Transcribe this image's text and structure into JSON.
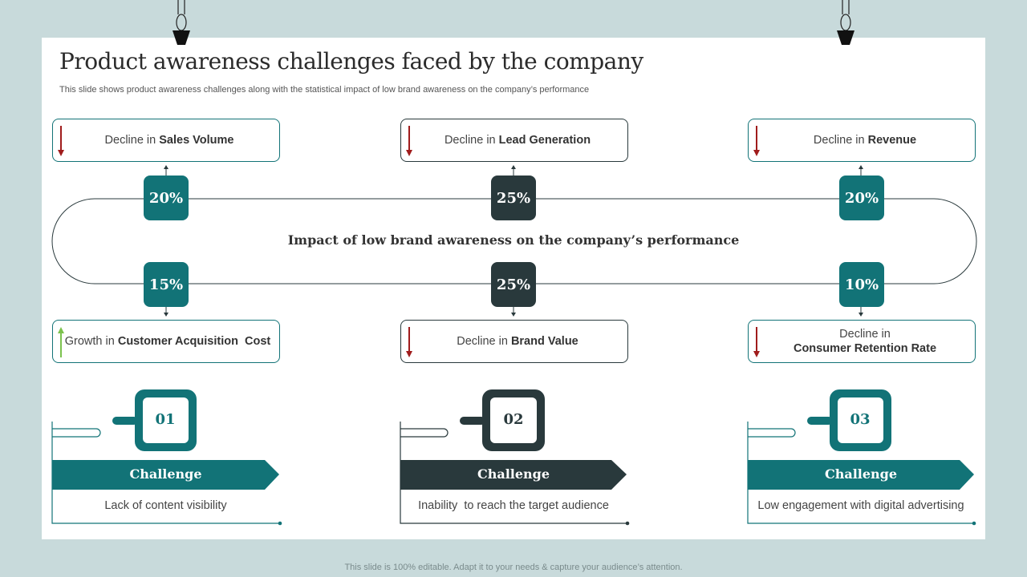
{
  "title": "Product awareness challenges faced by the company",
  "subtitle": "This slide shows product awareness challenges along with the statistical impact of low brand awareness on the company’s performance",
  "center_text": "Impact of low brand awareness on the company’s performance",
  "metrics": {
    "top": [
      {
        "percent": "20%",
        "prefix": "Decline in",
        "label": "Sales Volume",
        "direction": "decline"
      },
      {
        "percent": "25%",
        "prefix": "Decline in",
        "label": "Lead Generation",
        "direction": "decline"
      },
      {
        "percent": "20%",
        "prefix": "Decline in",
        "label": "Revenue",
        "direction": "decline"
      }
    ],
    "bottom": [
      {
        "percent": "15%",
        "prefix": "Growth in",
        "label": "Customer Acquisition  Cost",
        "direction": "growth"
      },
      {
        "percent": "25%",
        "prefix": "Decline in",
        "label": "Brand Value",
        "direction": "decline"
      },
      {
        "percent": "10%",
        "prefix": "Decline in",
        "label": "Consumer Retention Rate",
        "direction": "decline"
      }
    ]
  },
  "challenges": [
    {
      "number": "01",
      "label": "Challenge",
      "description": "Lack of content visibility"
    },
    {
      "number": "02",
      "label": "Challenge",
      "description": "Inability  to reach the target audience"
    },
    {
      "number": "03",
      "label": "Challenge",
      "description": "Low engagement with digital advertising"
    }
  ],
  "footer": "This slide is 100% editable. Adapt it to your needs & capture your audience’s attention.",
  "colors": {
    "teal": "#127377",
    "dark": "#29393c",
    "decline": "#a01c1c",
    "growth": "#7cc24e",
    "background": "#c8dadb"
  }
}
